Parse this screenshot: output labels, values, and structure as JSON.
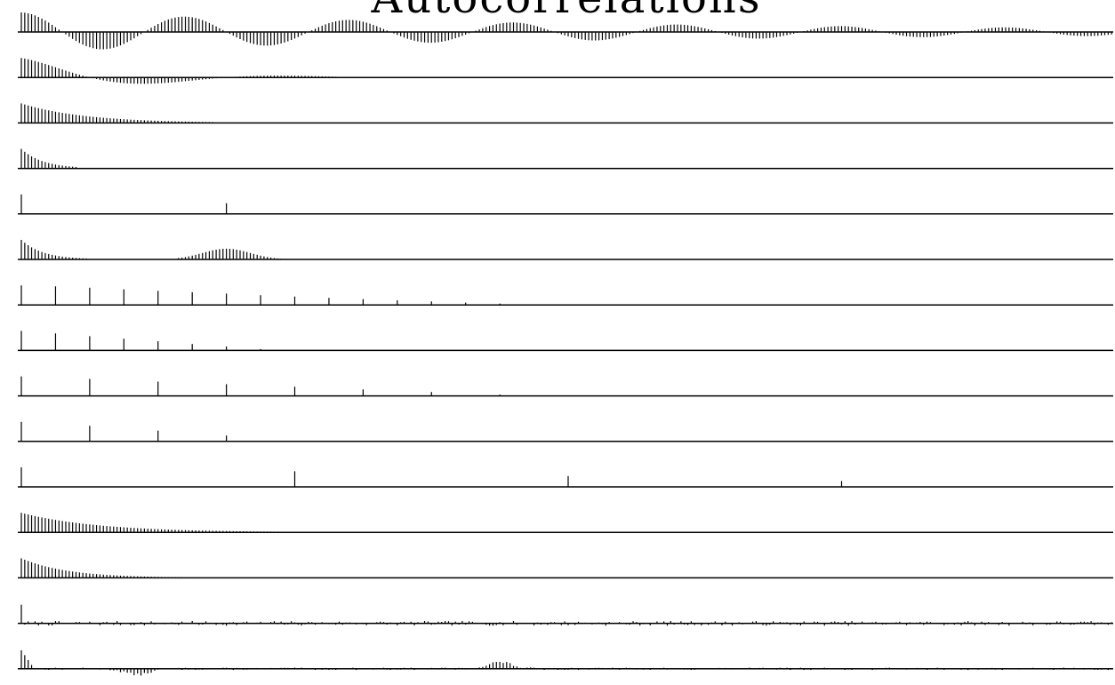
{
  "chart_data": {
    "type": "bar",
    "title": "Autocorrelations",
    "xlabel": "",
    "ylabel": "",
    "grid": false,
    "lag_count": 320,
    "panels": [
      {
        "name": "",
        "sparse": 0,
        "damped_sine": {
          "period": 48,
          "decay": 0.005,
          "amp": 1.0
        }
      },
      {
        "name": "",
        "sparse": 0,
        "damped_sine": {
          "period": 80,
          "decay": 0.03,
          "amp": 1.0,
          "cutoff": 250
        }
      },
      {
        "name": "",
        "sparse": 0,
        "exp_decay": {
          "rate": 0.055,
          "cutoff": 56
        }
      },
      {
        "name": "",
        "sparse": 0,
        "exp_decay": {
          "rate": 0.16,
          "cutoff": 16
        }
      },
      {
        "name": "",
        "sparse": 1,
        "lags": [
          0,
          60
        ],
        "values": [
          1.0,
          0.55
        ]
      },
      {
        "name": "",
        "sparse": 0,
        "double_bump": {
          "center": 60,
          "width": 14,
          "amp": 0.55,
          "rate": 0.16,
          "cutoff": 77
        }
      },
      {
        "name": "",
        "sparse": 1,
        "lags": [
          0,
          10,
          20,
          30,
          40,
          50,
          60,
          70,
          80,
          90,
          100,
          110,
          120,
          130,
          140,
          150
        ],
        "values": [
          1.0,
          0.95,
          0.88,
          0.8,
          0.72,
          0.65,
          0.58,
          0.5,
          0.43,
          0.36,
          0.3,
          0.24,
          0.18,
          0.12,
          0.07,
          0.03
        ]
      },
      {
        "name": "",
        "sparse": 1,
        "lags": [
          0,
          10,
          20,
          30,
          40,
          50,
          60,
          70
        ],
        "values": [
          1.0,
          0.87,
          0.73,
          0.6,
          0.47,
          0.33,
          0.2,
          0.07
        ]
      },
      {
        "name": "",
        "sparse": 1,
        "lags": [
          0,
          20,
          40,
          60,
          80,
          100,
          120,
          140
        ],
        "values": [
          1.0,
          0.87,
          0.73,
          0.6,
          0.47,
          0.33,
          0.2,
          0.07
        ]
      },
      {
        "name": "",
        "sparse": 1,
        "lags": [
          0,
          20,
          40,
          60
        ],
        "values": [
          1.0,
          0.8,
          0.55,
          0.3
        ]
      },
      {
        "name": "",
        "sparse": 1,
        "lags": [
          0,
          80,
          160,
          240
        ],
        "values": [
          1.0,
          0.8,
          0.55,
          0.3
        ]
      },
      {
        "name": "",
        "sparse": 0,
        "exp_decay": {
          "rate": 0.045,
          "cutoff": 110
        }
      },
      {
        "name": "",
        "sparse": 0,
        "exp_decay": {
          "rate": 0.075,
          "cutoff": 66
        }
      },
      {
        "name": "",
        "sparse": 0,
        "noise": {
          "amp": 0.12,
          "first": 0.95,
          "seed": 7
        }
      },
      {
        "name": "",
        "sparse": 0,
        "noise_bumps": {
          "amp": 0.06,
          "first": 0.95,
          "seed": 13,
          "bumps": [
            [
              34,
              -0.3
            ],
            [
              140,
              0.35
            ]
          ]
        }
      }
    ]
  }
}
